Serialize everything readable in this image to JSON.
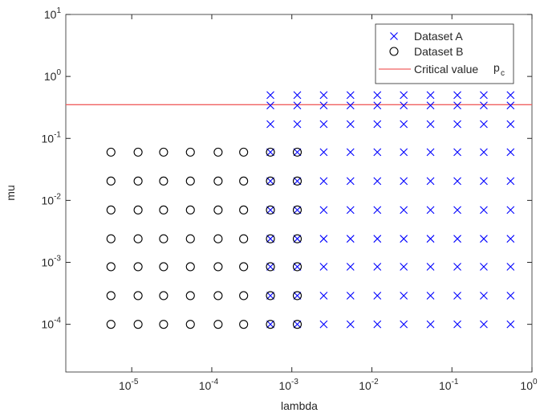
{
  "chart_data": {
    "type": "scatter",
    "x_label": "lambda",
    "y_label": "mu",
    "xlog": true,
    "ylog": true,
    "xlim": [
      1.5e-06,
      1
    ],
    "ylim": [
      1.7e-05,
      10
    ],
    "xticks": [
      {
        "value": 1e-05,
        "label": "10^-5"
      },
      {
        "value": 0.0001,
        "label": "10^-4"
      },
      {
        "value": 0.001,
        "label": "10^-3"
      },
      {
        "value": 0.01,
        "label": "10^-2"
      },
      {
        "value": 0.1,
        "label": "10^-1"
      },
      {
        "value": 1,
        "label": "10^0"
      }
    ],
    "yticks": [
      {
        "value": 0.0001,
        "label": "10^-4"
      },
      {
        "value": 0.001,
        "label": "10^-3"
      },
      {
        "value": 0.01,
        "label": "10^-2"
      },
      {
        "value": 0.1,
        "label": "10^-1"
      },
      {
        "value": 1,
        "label": "10^0"
      },
      {
        "value": 10,
        "label": "10^1"
      }
    ],
    "legend": "top-right",
    "series": [
      {
        "name": "Dataset A",
        "color": "#0000ff",
        "marker": "x",
        "x": [
          0.00054,
          0.00054,
          0.00054,
          0.00054,
          0.00054,
          0.00054,
          0.00054,
          0.00054,
          0.00054,
          0.00054,
          0.00117,
          0.00117,
          0.00117,
          0.00117,
          0.00117,
          0.00117,
          0.00117,
          0.00117,
          0.00117,
          0.00117,
          0.0025,
          0.0025,
          0.0025,
          0.0025,
          0.0025,
          0.0025,
          0.0025,
          0.0025,
          0.0025,
          0.0025,
          0.0054,
          0.0054,
          0.0054,
          0.0054,
          0.0054,
          0.0054,
          0.0054,
          0.0054,
          0.0054,
          0.0054,
          0.0117,
          0.0117,
          0.0117,
          0.0117,
          0.0117,
          0.0117,
          0.0117,
          0.0117,
          0.0117,
          0.0117,
          0.025,
          0.025,
          0.025,
          0.025,
          0.025,
          0.025,
          0.025,
          0.025,
          0.025,
          0.025,
          0.054,
          0.054,
          0.054,
          0.054,
          0.054,
          0.054,
          0.054,
          0.054,
          0.054,
          0.054,
          0.117,
          0.117,
          0.117,
          0.117,
          0.117,
          0.117,
          0.117,
          0.117,
          0.117,
          0.117,
          0.25,
          0.25,
          0.25,
          0.25,
          0.25,
          0.25,
          0.25,
          0.25,
          0.25,
          0.25,
          0.54,
          0.54,
          0.54,
          0.54,
          0.54,
          0.54,
          0.54,
          0.54,
          0.54,
          0.54
        ],
        "y": [
          0.0001,
          0.00029,
          0.00085,
          0.0024,
          0.007,
          0.0205,
          0.06,
          0.17,
          0.34,
          0.5,
          0.0001,
          0.00029,
          0.00085,
          0.0024,
          0.007,
          0.0205,
          0.06,
          0.17,
          0.34,
          0.5,
          0.0001,
          0.00029,
          0.00085,
          0.0024,
          0.007,
          0.0205,
          0.06,
          0.17,
          0.34,
          0.5,
          0.0001,
          0.00029,
          0.00085,
          0.0024,
          0.007,
          0.0205,
          0.06,
          0.17,
          0.34,
          0.5,
          0.0001,
          0.00029,
          0.00085,
          0.0024,
          0.007,
          0.0205,
          0.06,
          0.17,
          0.34,
          0.5,
          0.0001,
          0.00029,
          0.00085,
          0.0024,
          0.007,
          0.0205,
          0.06,
          0.17,
          0.34,
          0.5,
          0.0001,
          0.00029,
          0.00085,
          0.0024,
          0.007,
          0.0205,
          0.06,
          0.17,
          0.34,
          0.5,
          0.0001,
          0.00029,
          0.00085,
          0.0024,
          0.007,
          0.0205,
          0.06,
          0.17,
          0.34,
          0.5,
          0.0001,
          0.00029,
          0.00085,
          0.0024,
          0.007,
          0.0205,
          0.06,
          0.17,
          0.34,
          0.5,
          0.0001,
          0.00029,
          0.00085,
          0.0024,
          0.007,
          0.0205,
          0.06,
          0.17,
          0.34,
          0.5
        ]
      },
      {
        "name": "Dataset B",
        "color": "#000000",
        "marker": "o",
        "x": [
          5.5e-06,
          5.5e-06,
          5.5e-06,
          5.5e-06,
          5.5e-06,
          5.5e-06,
          5.5e-06,
          1.2e-05,
          1.2e-05,
          1.2e-05,
          1.2e-05,
          1.2e-05,
          1.2e-05,
          1.2e-05,
          2.5e-05,
          2.5e-05,
          2.5e-05,
          2.5e-05,
          2.5e-05,
          2.5e-05,
          2.5e-05,
          5.4e-05,
          5.4e-05,
          5.4e-05,
          5.4e-05,
          5.4e-05,
          5.4e-05,
          5.4e-05,
          0.00012,
          0.00012,
          0.00012,
          0.00012,
          0.00012,
          0.00012,
          0.00012,
          0.00025,
          0.00025,
          0.00025,
          0.00025,
          0.00025,
          0.00025,
          0.00025,
          0.00054,
          0.00054,
          0.00054,
          0.00054,
          0.00054,
          0.00054,
          0.00054,
          0.00117,
          0.00117,
          0.00117,
          0.00117,
          0.00117,
          0.00117,
          0.00117
        ],
        "y": [
          0.0001,
          0.00029,
          0.00085,
          0.0024,
          0.007,
          0.0205,
          0.06,
          0.0001,
          0.00029,
          0.00085,
          0.0024,
          0.007,
          0.0205,
          0.06,
          0.0001,
          0.00029,
          0.00085,
          0.0024,
          0.007,
          0.0205,
          0.06,
          0.0001,
          0.00029,
          0.00085,
          0.0024,
          0.007,
          0.0205,
          0.06,
          0.0001,
          0.00029,
          0.00085,
          0.0024,
          0.007,
          0.0205,
          0.06,
          0.0001,
          0.00029,
          0.00085,
          0.0024,
          0.007,
          0.0205,
          0.06,
          0.0001,
          0.00029,
          0.00085,
          0.0024,
          0.007,
          0.0205,
          0.06,
          0.0001,
          0.00029,
          0.00085,
          0.0024,
          0.007,
          0.0205,
          0.06
        ]
      }
    ],
    "hline": {
      "name": "Critical value",
      "symbol": "p",
      "symbol_subscript": "c",
      "value": 0.35,
      "color": "#f06060"
    }
  }
}
